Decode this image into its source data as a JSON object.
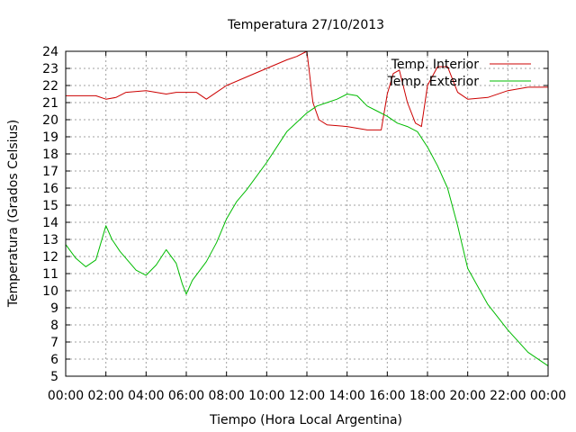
{
  "chart_data": {
    "type": "line",
    "title": "Temperatura 27/10/2013",
    "xlabel": "Tiempo (Hora Local Argentina)",
    "ylabel": "Temperatura (Grados Celsius)",
    "xlim": [
      0,
      24
    ],
    "ylim": [
      5,
      24
    ],
    "x_tick_values": [
      0,
      2,
      4,
      6,
      8,
      10,
      12,
      14,
      16,
      18,
      20,
      22,
      24
    ],
    "x_tick_labels": [
      "00:00",
      "02:00",
      "04:00",
      "06:00",
      "08:00",
      "10:00",
      "12:00",
      "14:00",
      "16:00",
      "18:00",
      "20:00",
      "22:00",
      "00:00"
    ],
    "y_ticks": [
      5,
      6,
      7,
      8,
      9,
      10,
      11,
      12,
      13,
      14,
      15,
      16,
      17,
      18,
      19,
      20,
      21,
      22,
      23,
      24
    ],
    "grid": true,
    "legend_position": "top-right",
    "series": [
      {
        "name": "Temp. Interior",
        "color": "#cc0000",
        "x": [
          0,
          1.5,
          2.0,
          2.5,
          3.0,
          4.0,
          4.5,
          5.0,
          5.5,
          6.0,
          6.5,
          7.0,
          7.5,
          8.0,
          9.0,
          10.0,
          11.0,
          11.5,
          12.0,
          12.3,
          12.6,
          13.0,
          14.0,
          15.0,
          15.7,
          16.0,
          16.3,
          16.6,
          17.0,
          17.4,
          17.7,
          18.0,
          18.5,
          19.0,
          19.5,
          20.0,
          21.0,
          22.0,
          23.0,
          24.0
        ],
        "values": [
          21.4,
          21.4,
          21.2,
          21.3,
          21.6,
          21.7,
          21.6,
          21.5,
          21.6,
          21.6,
          21.6,
          21.2,
          21.6,
          22.0,
          22.5,
          23.0,
          23.5,
          23.7,
          24.0,
          21.0,
          20.0,
          19.7,
          19.6,
          19.4,
          19.4,
          21.5,
          22.7,
          22.9,
          21.0,
          19.8,
          19.6,
          22.0,
          23.1,
          23.1,
          21.6,
          21.2,
          21.3,
          21.7,
          21.9,
          21.9
        ]
      },
      {
        "name": "Temp. Exterior",
        "color": "#00bb00",
        "x": [
          0,
          0.5,
          1.0,
          1.5,
          2.0,
          2.3,
          2.7,
          3.5,
          4.0,
          4.5,
          5.0,
          5.5,
          5.8,
          6.0,
          6.3,
          7.0,
          7.5,
          8.0,
          8.5,
          9.0,
          10.0,
          11.0,
          12.0,
          12.5,
          13.0,
          13.5,
          14.0,
          14.5,
          15.0,
          15.5,
          16.0,
          16.5,
          17.0,
          17.5,
          18.0,
          18.5,
          19.0,
          19.5,
          20.0,
          21.0,
          22.0,
          23.0,
          24.0
        ],
        "values": [
          12.7,
          11.9,
          11.4,
          11.8,
          13.8,
          13.0,
          12.3,
          11.2,
          10.9,
          11.5,
          12.4,
          11.6,
          10.4,
          9.8,
          10.6,
          11.7,
          12.8,
          14.2,
          15.2,
          15.9,
          17.5,
          19.3,
          20.4,
          20.8,
          21.0,
          21.2,
          21.5,
          21.4,
          20.8,
          20.5,
          20.2,
          19.8,
          19.6,
          19.3,
          18.4,
          17.3,
          16.0,
          13.8,
          11.3,
          9.2,
          7.7,
          6.4,
          5.6
        ]
      }
    ]
  }
}
